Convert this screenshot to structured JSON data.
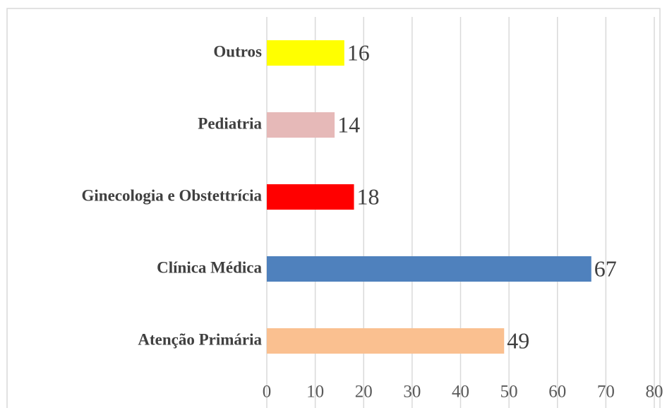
{
  "chart_data": {
    "type": "hbar",
    "categories": [
      "Outros",
      "Pediatria",
      "Ginecologia e Obstettrícia",
      "Clínica Médica",
      "Atenção Primária"
    ],
    "values": [
      16,
      14,
      18,
      67,
      49
    ],
    "colors": [
      "#ffff00",
      "#e6b9b8",
      "#ff0000",
      "#4f81bd",
      "#fac090"
    ],
    "xlim": [
      0,
      80
    ],
    "xticks": [
      0,
      10,
      20,
      30,
      40,
      50,
      60,
      70,
      80
    ],
    "grid": true
  }
}
